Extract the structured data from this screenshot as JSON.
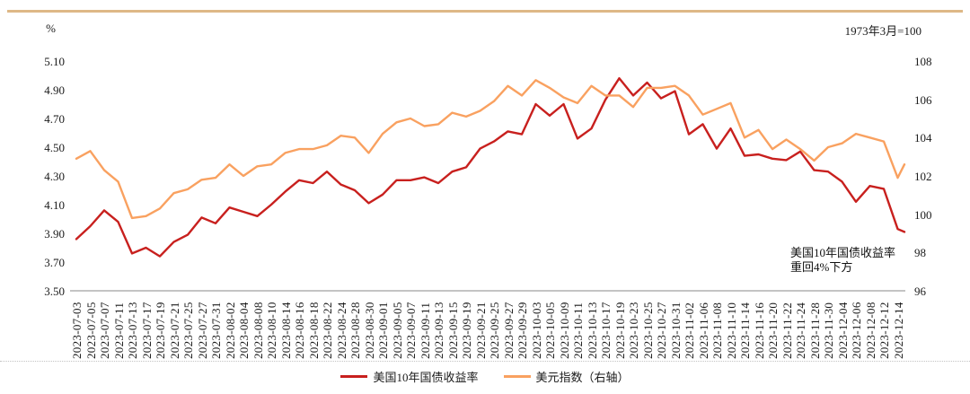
{
  "page": {
    "background": "#FFFFFF",
    "top_border_color": "#DEB887"
  },
  "chart": {
    "left_axis_unit": "%",
    "right_axis_unit": "1973年3月=100",
    "left_axis_ticks": [
      "5.10",
      "4.90",
      "4.70",
      "4.50",
      "4.30",
      "4.10",
      "3.90",
      "3.70",
      "3.50"
    ],
    "right_axis_ticks": [
      "108",
      "106",
      "104",
      "102",
      "100",
      "98",
      "96"
    ],
    "annotation": {
      "line1": "美国10年国债收益率",
      "line2": "重回4%下方"
    }
  },
  "chart_data": {
    "type": "line",
    "title": "",
    "x_tick_labels": [
      "2023-07-03",
      "2023-07-05",
      "2023-07-07",
      "2023-07-11",
      "2023-07-13",
      "2023-07-17",
      "2023-07-19",
      "2023-07-21",
      "2023-07-25",
      "2023-07-27",
      "2023-07-31",
      "2023-08-02",
      "2023-08-04",
      "2023-08-08",
      "2023-08-10",
      "2023-08-14",
      "2023-08-16",
      "2023-08-18",
      "2023-08-22",
      "2023-08-24",
      "2023-08-28",
      "2023-08-30",
      "2023-09-01",
      "2023-09-05",
      "2023-09-07",
      "2023-09-11",
      "2023-09-13",
      "2023-09-15",
      "2023-09-19",
      "2023-09-21",
      "2023-09-25",
      "2023-09-27",
      "2023-09-29",
      "2023-10-03",
      "2023-10-05",
      "2023-10-09",
      "2023-10-11",
      "2023-10-13",
      "2023-10-17",
      "2023-10-19",
      "2023-10-23",
      "2023-10-25",
      "2023-10-27",
      "2023-10-31",
      "2023-11-02",
      "2023-11-06",
      "2023-11-08",
      "2023-11-10",
      "2023-11-14",
      "2023-11-16",
      "2023-11-20",
      "2023-11-22",
      "2023-11-24",
      "2023-11-28",
      "2023-11-30",
      "2023-12-04",
      "2023-12-06",
      "2023-12-08",
      "2023-12-12",
      "2023-12-14"
    ],
    "x": [
      "2023-07-03",
      "2023-07-05",
      "2023-07-07",
      "2023-07-11",
      "2023-07-13",
      "2023-07-17",
      "2023-07-19",
      "2023-07-21",
      "2023-07-25",
      "2023-07-27",
      "2023-07-31",
      "2023-08-02",
      "2023-08-04",
      "2023-08-08",
      "2023-08-10",
      "2023-08-14",
      "2023-08-16",
      "2023-08-18",
      "2023-08-22",
      "2023-08-24",
      "2023-08-28",
      "2023-08-30",
      "2023-09-01",
      "2023-09-05",
      "2023-09-07",
      "2023-09-11",
      "2023-09-13",
      "2023-09-15",
      "2023-09-19",
      "2023-09-21",
      "2023-09-25",
      "2023-09-27",
      "2023-09-29",
      "2023-10-03",
      "2023-10-05",
      "2023-10-09",
      "2023-10-11",
      "2023-10-13",
      "2023-10-17",
      "2023-10-19",
      "2023-10-23",
      "2023-10-25",
      "2023-10-27",
      "2023-10-31",
      "2023-11-02",
      "2023-11-06",
      "2023-11-08",
      "2023-11-10",
      "2023-11-14",
      "2023-11-16",
      "2023-11-20",
      "2023-11-22",
      "2023-11-24",
      "2023-11-28",
      "2023-11-30",
      "2023-12-04",
      "2023-12-06",
      "2023-12-08",
      "2023-12-12",
      "2023-12-14",
      "2023-12-15"
    ],
    "series": [
      {
        "name": "美国10年国债收益率",
        "axis": "left",
        "color": "#C8201E",
        "values": [
          3.86,
          3.95,
          4.06,
          3.98,
          3.76,
          3.8,
          3.74,
          3.84,
          3.89,
          4.01,
          3.97,
          4.08,
          4.05,
          4.02,
          4.1,
          4.19,
          4.27,
          4.25,
          4.33,
          4.24,
          4.2,
          4.11,
          4.17,
          4.27,
          4.27,
          4.29,
          4.25,
          4.33,
          4.36,
          4.49,
          4.54,
          4.61,
          4.59,
          4.8,
          4.72,
          4.8,
          4.56,
          4.63,
          4.83,
          4.98,
          4.86,
          4.95,
          4.84,
          4.89,
          4.59,
          4.66,
          4.49,
          4.63,
          4.44,
          4.45,
          4.42,
          4.41,
          4.47,
          4.34,
          4.33,
          4.26,
          4.12,
          4.23,
          4.21,
          3.93,
          3.91
        ]
      },
      {
        "name": "美元指数（右轴）",
        "axis": "right",
        "color": "#F9A160",
        "values": [
          102.9,
          103.3,
          102.3,
          101.7,
          99.8,
          99.9,
          100.3,
          101.1,
          101.3,
          101.8,
          101.9,
          102.6,
          102.0,
          102.5,
          102.6,
          103.2,
          103.4,
          103.4,
          103.6,
          104.1,
          104.0,
          103.2,
          104.2,
          104.8,
          105.0,
          104.6,
          104.7,
          105.3,
          105.1,
          105.4,
          105.9,
          106.7,
          106.2,
          107.0,
          106.6,
          106.1,
          105.8,
          106.7,
          106.2,
          106.2,
          105.6,
          106.6,
          106.6,
          106.7,
          106.2,
          105.2,
          105.5,
          105.8,
          104.0,
          104.4,
          103.4,
          103.9,
          103.4,
          102.8,
          103.5,
          103.7,
          104.2,
          104.0,
          103.8,
          101.9,
          102.6
        ]
      }
    ],
    "left_axis": {
      "unit": "%",
      "min": 3.5,
      "max": 5.1,
      "tick_step": 0.2
    },
    "right_axis": {
      "unit": "1973年3月=100",
      "min": 96,
      "max": 108,
      "tick_step": 2
    },
    "grid": false,
    "legend_position": "bottom"
  }
}
